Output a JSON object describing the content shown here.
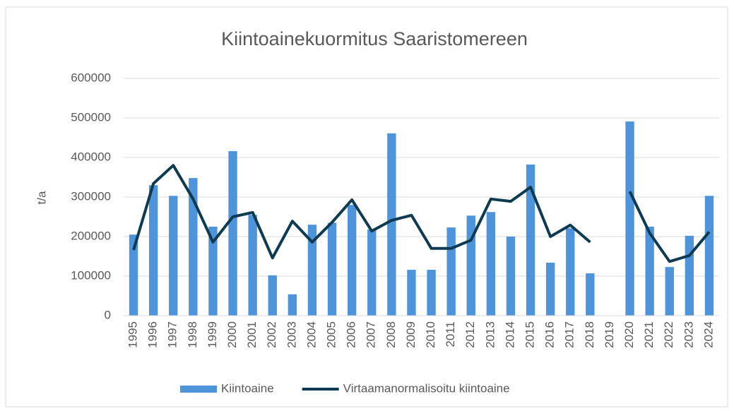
{
  "chart_data": {
    "type": "bar-line",
    "title": "Kiintoainekuormitus Saaristomereen",
    "y_label": "t/a",
    "categories": [
      "1995",
      "1996",
      "1997",
      "1998",
      "1999",
      "2000",
      "2001",
      "2002",
      "2003",
      "2004",
      "2005",
      "2006",
      "2007",
      "2008",
      "2009",
      "2010",
      "2011",
      "2012",
      "2013",
      "2014",
      "2015",
      "2016",
      "2017",
      "2018",
      "2019",
      "2020",
      "2021",
      "2022",
      "2023",
      "2024"
    ],
    "series": [
      {
        "name": "Kiintoaine",
        "type": "bar",
        "color": "#4d94db",
        "values": [
          205000,
          330000,
          303000,
          348000,
          225000,
          416000,
          255000,
          102000,
          54000,
          230000,
          235000,
          280000,
          218000,
          461000,
          116000,
          116000,
          223000,
          253000,
          262000,
          200000,
          382000,
          134000,
          221000,
          107000,
          null,
          491000,
          225000,
          123000,
          202000,
          303000
        ]
      },
      {
        "name": "Virtaamanormalisoitu kiintoaine",
        "type": "line",
        "color": "#0e3a52",
        "values": [
          166000,
          334000,
          380000,
          295000,
          186000,
          250000,
          261000,
          146000,
          239000,
          186000,
          236000,
          293000,
          214000,
          241000,
          254000,
          170000,
          170000,
          191000,
          295000,
          289000,
          325000,
          200000,
          229000,
          186000,
          null,
          314000,
          209000,
          137000,
          152000,
          212000
        ]
      }
    ],
    "ylim": [
      0,
      600000
    ],
    "yticks": [
      0,
      100000,
      200000,
      300000,
      400000,
      500000,
      600000
    ],
    "grid": true,
    "legend": "bottom"
  }
}
